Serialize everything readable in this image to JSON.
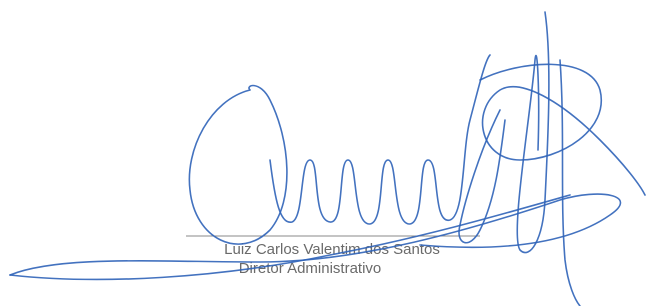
{
  "signature_block": {
    "name": "Luiz Carlos Valentim dos Santos",
    "role": "Diretor Administrativo"
  }
}
